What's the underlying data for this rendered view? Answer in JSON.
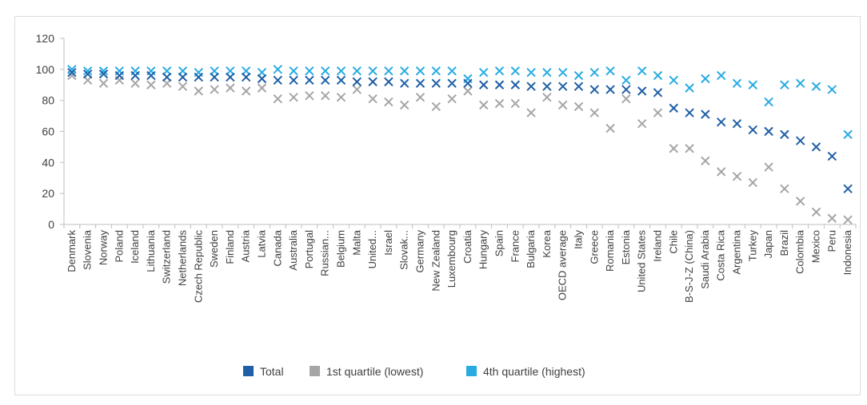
{
  "chart_data": {
    "type": "scatter",
    "title": "",
    "xlabel": "",
    "ylabel": "",
    "ylim": [
      0,
      120
    ],
    "yticks": [
      0,
      20,
      40,
      60,
      80,
      100,
      120
    ],
    "grid": false,
    "legend": "bottom",
    "marker": "x",
    "categories": [
      "Denmark",
      "Slovenia",
      "Norway",
      "Poland",
      "Iceland",
      "Lithuania",
      "Switzerland",
      "Netherlands",
      "Czech Republic",
      "Sweden",
      "Finland",
      "Austria",
      "Latvia",
      "Canada",
      "Australia",
      "Portugal",
      "Russian...",
      "Belgium",
      "Malta",
      "United...",
      "Israel",
      "Slovak...",
      "Germany",
      "New Zealand",
      "Luxembourg",
      "Croatia",
      "Hungary",
      "Spain",
      "France",
      "Bulgaria",
      "Korea",
      "OECD average",
      "Italy",
      "Greece",
      "Romania",
      "Estonia",
      "United States",
      "Ireland",
      "Chile",
      "B-S-J-Z (China)",
      "Saudi Arabia",
      "Costa Rica",
      "Argentina",
      "Turkey",
      "Japan",
      "Brazil",
      "Colombia",
      "Mexico",
      "Peru",
      "Indonesia"
    ],
    "series": [
      {
        "name": "Total",
        "color": "#1f5fa6",
        "values": [
          98,
          97,
          97,
          96,
          96,
          96,
          95,
          95,
          95,
          95,
          95,
          95,
          94,
          93,
          93,
          93,
          93,
          93,
          92,
          92,
          92,
          91,
          91,
          91,
          91,
          91,
          90,
          90,
          90,
          89,
          89,
          89,
          89,
          87,
          87,
          87,
          86,
          85,
          75,
          72,
          71,
          66,
          65,
          61,
          60,
          58,
          54,
          50,
          44,
          23
        ]
      },
      {
        "name": "1st quartile (lowest)",
        "color": "#a6a6a6",
        "values": [
          96,
          93,
          91,
          93,
          91,
          90,
          91,
          89,
          86,
          87,
          88,
          86,
          88,
          81,
          82,
          83,
          83,
          82,
          87,
          81,
          79,
          77,
          82,
          76,
          81,
          86,
          77,
          78,
          78,
          72,
          82,
          77,
          76,
          72,
          62,
          81,
          65,
          72,
          49,
          49,
          41,
          34,
          31,
          27,
          37,
          23,
          15,
          8,
          4,
          3
        ]
      },
      {
        "name": "4th quartile (highest)",
        "color": "#29abe2",
        "values": [
          100,
          99,
          99,
          99,
          99,
          99,
          99,
          99,
          98,
          99,
          99,
          99,
          98,
          100,
          99,
          99,
          99,
          99,
          99,
          99,
          99,
          99,
          99,
          99,
          99,
          94,
          98,
          99,
          99,
          98,
          98,
          98,
          96,
          98,
          99,
          93,
          99,
          96,
          93,
          88,
          94,
          96,
          91,
          90,
          79,
          90,
          91,
          89,
          87,
          58
        ]
      }
    ]
  }
}
